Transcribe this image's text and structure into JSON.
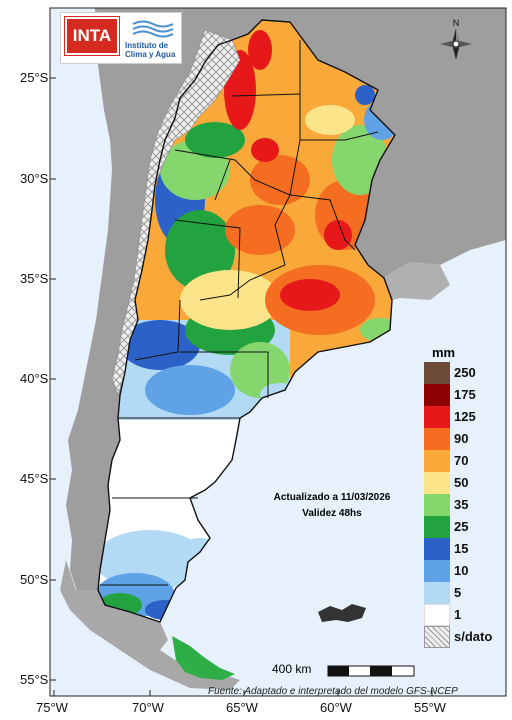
{
  "map": {
    "region": "Argentina",
    "colors": {
      "ocean": "#e7f1fb",
      "land_neighbor": "#9e9e9e",
      "no_data_hatch": "#cfcfcf",
      "border": "#111111"
    }
  },
  "logo": {
    "brand": "INTA",
    "institute_line1": "Instituto de",
    "institute_line2": "Clima y Agua"
  },
  "north_arrow": {
    "label": "N"
  },
  "axes": {
    "latitudes": [
      "25°S",
      "30°S",
      "35°S",
      "40°S",
      "45°S",
      "50°S",
      "55°S"
    ],
    "longitudes": [
      "75°W",
      "70°W",
      "65°W",
      "60°W",
      "55°W"
    ]
  },
  "legend": {
    "unit": "mm",
    "items": [
      {
        "label": "250",
        "color": "#6b4a3a"
      },
      {
        "label": "175",
        "color": "#8b0000"
      },
      {
        "label": "125",
        "color": "#e6181a"
      },
      {
        "label": "90",
        "color": "#f46d20"
      },
      {
        "label": "70",
        "color": "#f9a83a"
      },
      {
        "label": "50",
        "color": "#fbe48a"
      },
      {
        "label": "35",
        "color": "#86d66e"
      },
      {
        "label": "25",
        "color": "#23a33f"
      },
      {
        "label": "15",
        "color": "#2c62c8"
      },
      {
        "label": "10",
        "color": "#5fa2e6"
      },
      {
        "label": "5",
        "color": "#b3daf4"
      },
      {
        "label": "1",
        "color": "#ffffff"
      },
      {
        "label": "s/dato",
        "color": "hatch"
      }
    ]
  },
  "info": {
    "updated": "Actualizado a 11/03/2026",
    "validity": "Validez 48hs"
  },
  "scale": {
    "label": "400 km"
  },
  "source": {
    "text": "Fuente: Adaptado e interpretado del modelo GFS-NCEP"
  }
}
